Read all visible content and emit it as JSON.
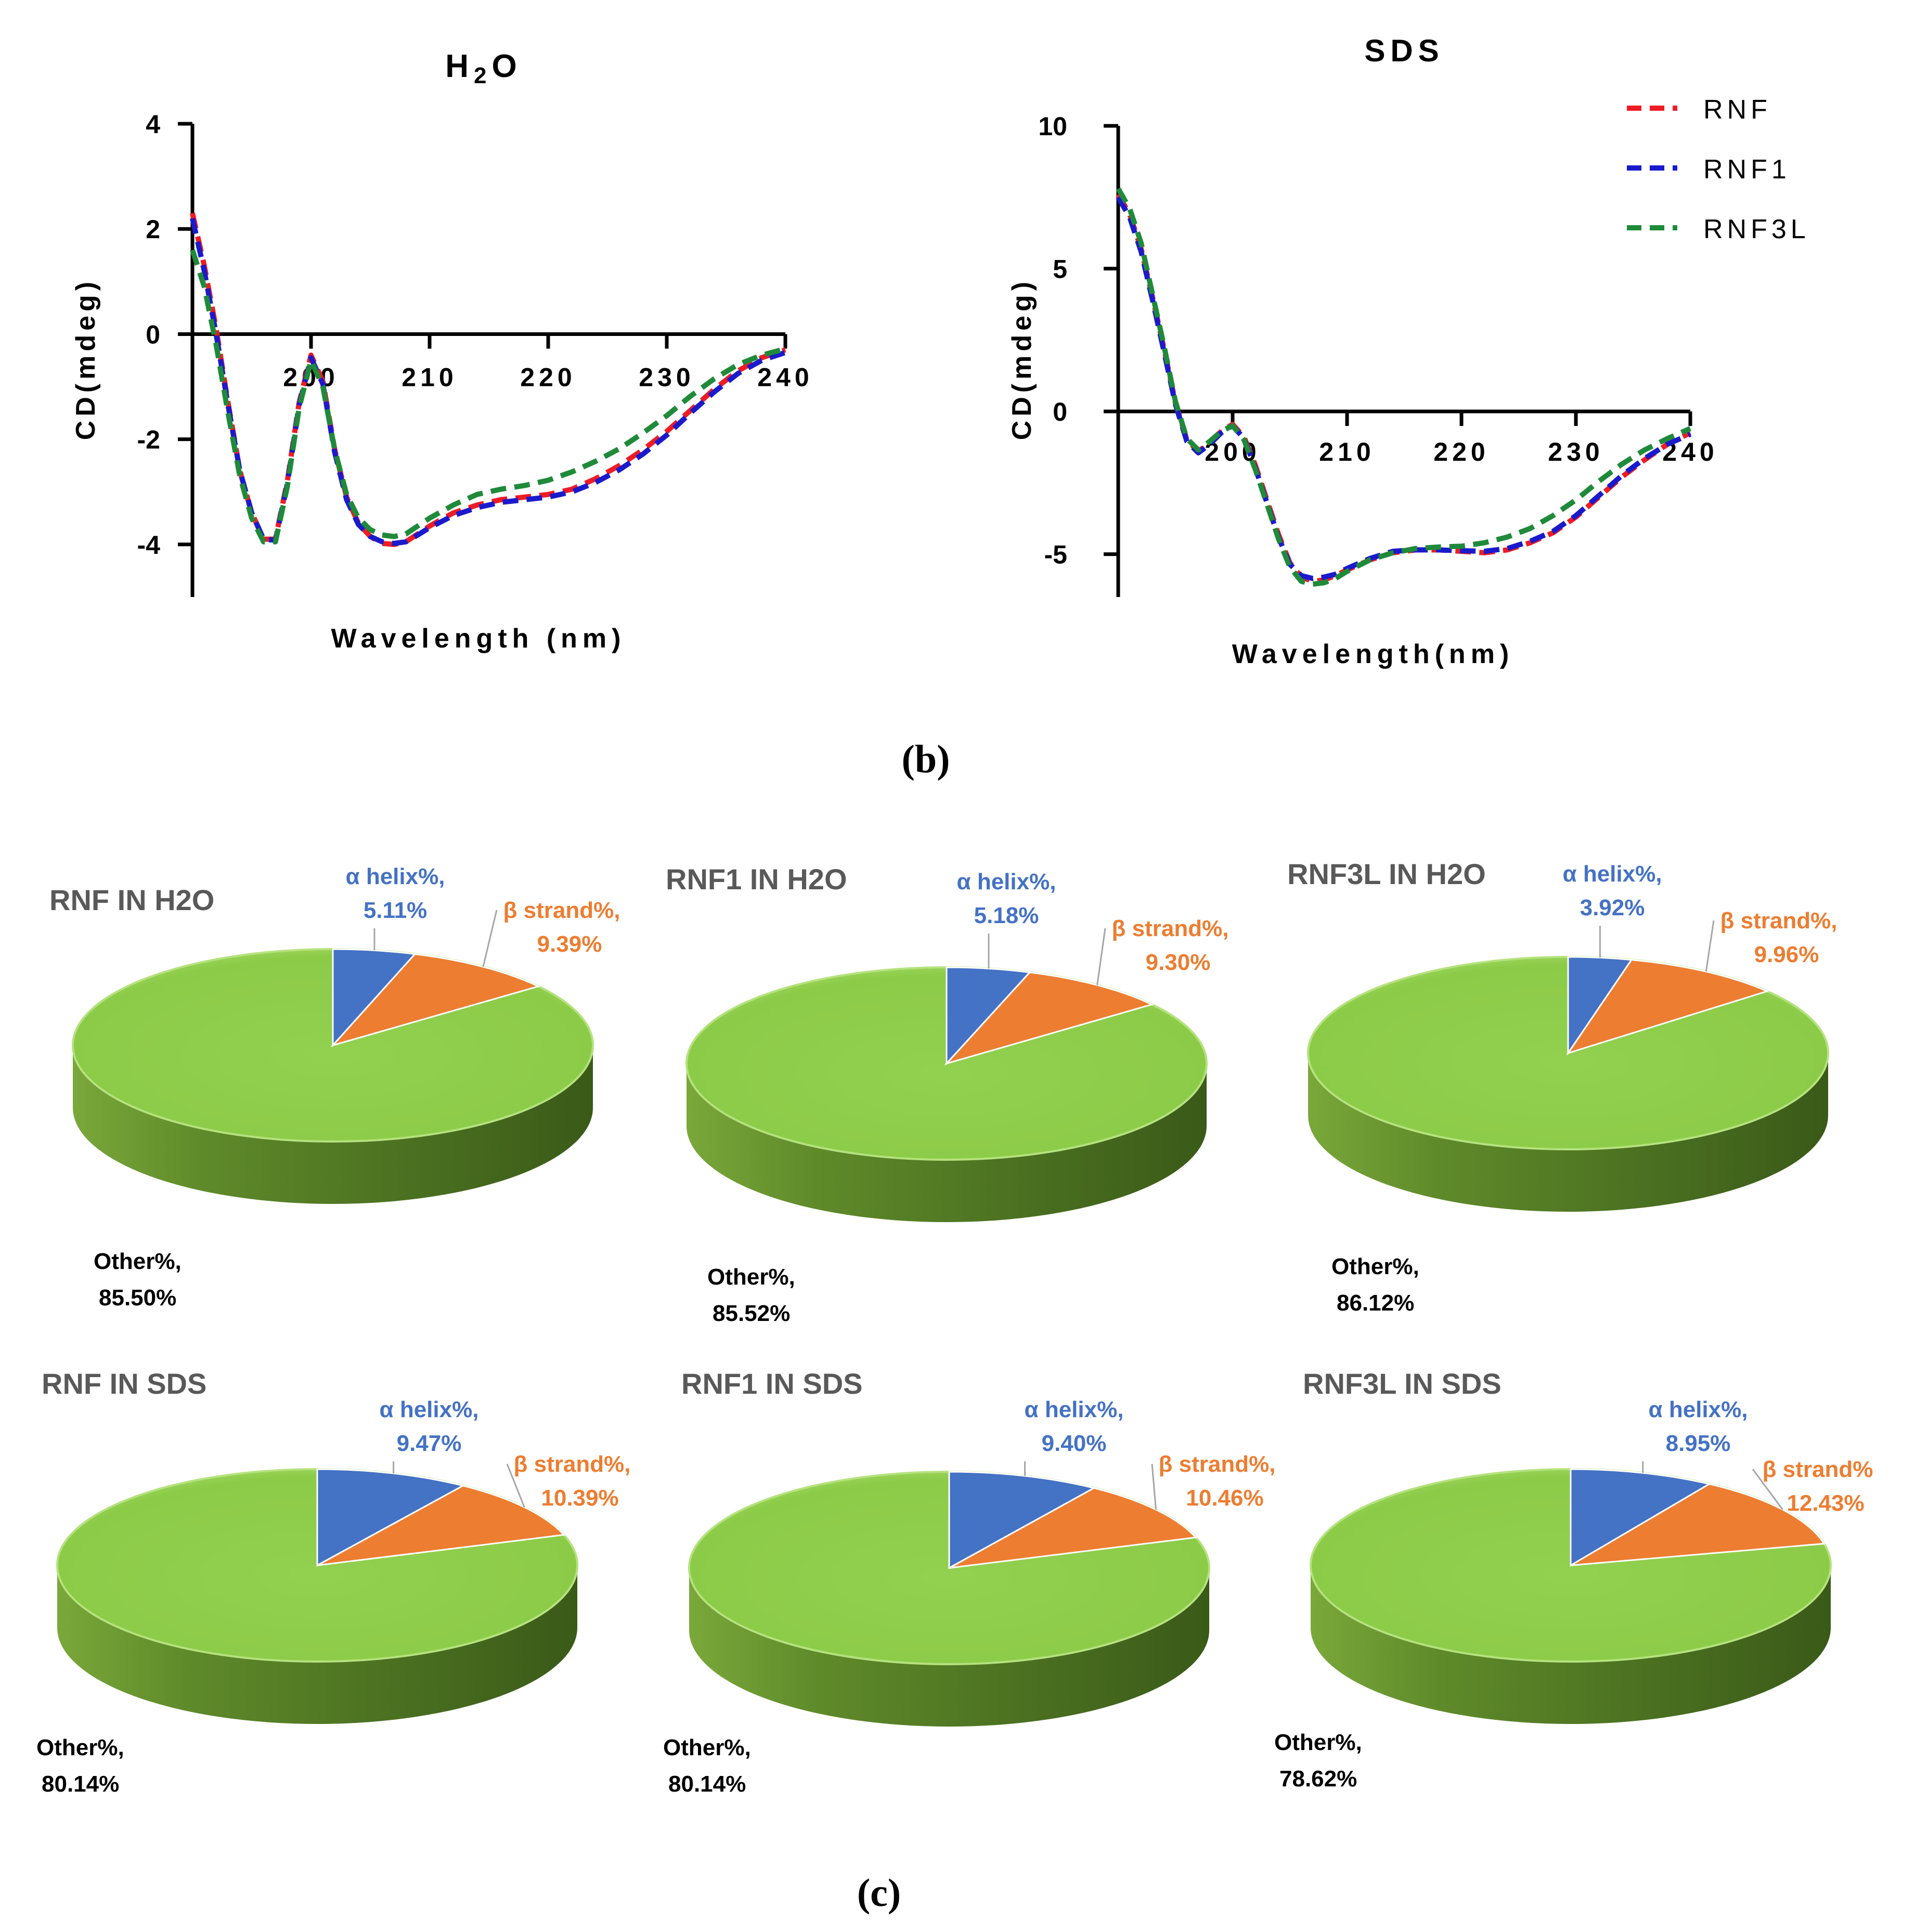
{
  "colors": {
    "rnf": "#ee1c25",
    "rnf1": "#1a1acc",
    "rnf3l": "#1f8a3a",
    "alpha": "#4472c4",
    "beta": "#ed7d31",
    "other": "#92d050",
    "alpha_label": "#4472c4",
    "beta_label": "#ed7d31",
    "title_gray": "#595959"
  },
  "captions": {
    "b": "(b)",
    "c": "(c)"
  },
  "chart_data": [
    {
      "type": "line",
      "title_main": "H",
      "title_sub": "2",
      "title_rest": "O",
      "xlabel": "Wavelength (nm)",
      "ylabel": "CD(mdeg)",
      "xlim": [
        190,
        240
      ],
      "ylim": [
        -5,
        4
      ],
      "xticks": [
        200,
        210,
        220,
        230,
        240
      ],
      "yticks": [
        -4,
        -2,
        0,
        2,
        4
      ],
      "grid": false,
      "series": [
        {
          "name": "RNF",
          "x": [
            190,
            191,
            192,
            193,
            194,
            195,
            196,
            197,
            198,
            199,
            200,
            201,
            202,
            203,
            204,
            205,
            206,
            207,
            208,
            209,
            210,
            212,
            214,
            216,
            218,
            220,
            222,
            224,
            226,
            228,
            230,
            232,
            234,
            236,
            238,
            240
          ],
          "values": [
            2.3,
            1.3,
            0.1,
            -1.3,
            -2.6,
            -3.4,
            -3.9,
            -3.9,
            -2.8,
            -1.3,
            -0.4,
            -0.9,
            -2.2,
            -3.1,
            -3.6,
            -3.85,
            -3.98,
            -4.0,
            -3.95,
            -3.8,
            -3.65,
            -3.4,
            -3.25,
            -3.15,
            -3.1,
            -3.05,
            -2.95,
            -2.75,
            -2.5,
            -2.2,
            -1.85,
            -1.45,
            -1.05,
            -0.7,
            -0.45,
            -0.3
          ]
        },
        {
          "name": "RNF1",
          "x": [
            190,
            191,
            192,
            193,
            194,
            195,
            196,
            197,
            198,
            199,
            200,
            201,
            202,
            203,
            204,
            205,
            206,
            207,
            208,
            209,
            210,
            212,
            214,
            216,
            218,
            220,
            222,
            224,
            226,
            228,
            230,
            232,
            234,
            236,
            238,
            240
          ],
          "values": [
            2.2,
            1.2,
            0.0,
            -1.35,
            -2.6,
            -3.4,
            -3.9,
            -3.92,
            -2.85,
            -1.35,
            -0.45,
            -0.95,
            -2.25,
            -3.15,
            -3.62,
            -3.85,
            -3.95,
            -3.98,
            -3.95,
            -3.82,
            -3.68,
            -3.45,
            -3.3,
            -3.2,
            -3.15,
            -3.1,
            -3.0,
            -2.82,
            -2.58,
            -2.28,
            -1.92,
            -1.5,
            -1.1,
            -0.75,
            -0.5,
            -0.35
          ]
        },
        {
          "name": "RNF3L",
          "x": [
            190,
            191,
            192,
            193,
            194,
            195,
            196,
            197,
            198,
            199,
            200,
            201,
            202,
            203,
            204,
            205,
            206,
            207,
            208,
            209,
            210,
            212,
            214,
            216,
            218,
            220,
            222,
            224,
            226,
            228,
            230,
            232,
            234,
            236,
            238,
            240
          ],
          "values": [
            1.6,
            0.9,
            -0.2,
            -1.5,
            -2.7,
            -3.5,
            -3.95,
            -3.95,
            -2.9,
            -1.4,
            -0.5,
            -1.0,
            -2.2,
            -3.05,
            -3.5,
            -3.72,
            -3.82,
            -3.85,
            -3.8,
            -3.65,
            -3.5,
            -3.25,
            -3.05,
            -2.95,
            -2.88,
            -2.78,
            -2.62,
            -2.42,
            -2.18,
            -1.88,
            -1.55,
            -1.18,
            -0.85,
            -0.58,
            -0.4,
            -0.28
          ]
        }
      ]
    },
    {
      "type": "line",
      "title": "SDS",
      "xlabel": "Wavelength(nm)",
      "ylabel": "CD(mdeg)",
      "xlim": [
        190,
        240
      ],
      "ylim": [
        -6.5,
        10
      ],
      "xticks": [
        200,
        210,
        220,
        230,
        240
      ],
      "yticks": [
        -5,
        0,
        5,
        10
      ],
      "grid": false,
      "legend": "top-right",
      "series": [
        {
          "name": "RNF",
          "x": [
            190,
            191,
            192,
            193,
            194,
            195,
            196,
            197,
            198,
            199,
            200,
            201,
            202,
            203,
            204,
            205,
            206,
            207,
            208,
            209,
            210,
            212,
            214,
            216,
            218,
            220,
            222,
            224,
            226,
            228,
            230,
            232,
            234,
            236,
            238,
            240
          ],
          "values": [
            7.6,
            6.9,
            5.7,
            4.0,
            2.2,
            0.3,
            -1.0,
            -1.4,
            -1.1,
            -0.7,
            -0.45,
            -0.9,
            -1.9,
            -3.1,
            -4.3,
            -5.3,
            -5.8,
            -5.95,
            -5.9,
            -5.75,
            -5.55,
            -5.2,
            -4.95,
            -4.85,
            -4.85,
            -4.9,
            -4.95,
            -4.85,
            -4.6,
            -4.25,
            -3.7,
            -3.0,
            -2.3,
            -1.7,
            -1.15,
            -0.75
          ]
        },
        {
          "name": "RNF1",
          "x": [
            190,
            191,
            192,
            193,
            194,
            195,
            196,
            197,
            198,
            199,
            200,
            201,
            202,
            203,
            204,
            205,
            206,
            207,
            208,
            209,
            210,
            212,
            214,
            216,
            218,
            220,
            222,
            224,
            226,
            228,
            230,
            232,
            234,
            236,
            238,
            240
          ],
          "values": [
            7.5,
            6.8,
            5.6,
            3.9,
            2.1,
            0.25,
            -1.05,
            -1.45,
            -1.15,
            -0.75,
            -0.5,
            -0.95,
            -2.0,
            -3.2,
            -4.4,
            -5.35,
            -5.75,
            -5.85,
            -5.8,
            -5.7,
            -5.5,
            -5.15,
            -4.9,
            -4.85,
            -4.85,
            -4.88,
            -4.9,
            -4.8,
            -4.55,
            -4.2,
            -3.65,
            -2.95,
            -2.25,
            -1.65,
            -1.15,
            -0.8
          ]
        },
        {
          "name": "RNF3L",
          "x": [
            190,
            191,
            192,
            193,
            194,
            195,
            196,
            197,
            198,
            199,
            200,
            201,
            202,
            203,
            204,
            205,
            206,
            207,
            208,
            209,
            210,
            212,
            214,
            216,
            218,
            220,
            222,
            224,
            226,
            228,
            230,
            232,
            234,
            236,
            238,
            240
          ],
          "values": [
            7.8,
            7.1,
            5.9,
            4.1,
            2.3,
            0.35,
            -0.95,
            -1.35,
            -1.05,
            -0.7,
            -0.5,
            -1.0,
            -2.05,
            -3.25,
            -4.45,
            -5.45,
            -5.95,
            -6.05,
            -6.0,
            -5.85,
            -5.6,
            -5.2,
            -4.95,
            -4.8,
            -4.75,
            -4.72,
            -4.6,
            -4.4,
            -4.1,
            -3.65,
            -3.1,
            -2.45,
            -1.85,
            -1.35,
            -0.95,
            -0.6
          ]
        }
      ]
    },
    {
      "type": "pie",
      "title": "RNF IN H2O",
      "slices": [
        {
          "label": "α helix%,",
          "value": 5.11,
          "value_text": "5.11%"
        },
        {
          "label": "β strand%,",
          "value": 9.39,
          "value_text": "9.39%"
        },
        {
          "label": "Other%,",
          "value": 85.5,
          "value_text": "85.50%"
        }
      ]
    },
    {
      "type": "pie",
      "title": "RNF1 IN H2O",
      "slices": [
        {
          "label": "α helix%,",
          "value": 5.18,
          "value_text": "5.18%"
        },
        {
          "label": "β strand%,",
          "value": 9.3,
          "value_text": "9.30%"
        },
        {
          "label": "Other%,",
          "value": 85.52,
          "value_text": "85.52%"
        }
      ]
    },
    {
      "type": "pie",
      "title": "RNF3L IN H2O",
      "slices": [
        {
          "label": "α helix%,",
          "value": 3.92,
          "value_text": "3.92%"
        },
        {
          "label": "β strand%,",
          "value": 9.96,
          "value_text": "9.96%"
        },
        {
          "label": "Other%,",
          "value": 86.12,
          "value_text": "86.12%"
        }
      ]
    },
    {
      "type": "pie",
      "title": "RNF IN SDS",
      "slices": [
        {
          "label": "α helix%,",
          "value": 9.47,
          "value_text": "9.47%"
        },
        {
          "label": "β strand%,",
          "value": 10.39,
          "value_text": "10.39%"
        },
        {
          "label": "Other%,",
          "value": 80.14,
          "value_text": "80.14%"
        }
      ]
    },
    {
      "type": "pie",
      "title": "RNF1 IN SDS",
      "slices": [
        {
          "label": "α helix%,",
          "value": 9.4,
          "value_text": "9.40%"
        },
        {
          "label": "β strand%,",
          "value": 10.46,
          "value_text": "10.46%"
        },
        {
          "label": "Other%,",
          "value": 80.14,
          "value_text": "80.14%"
        }
      ]
    },
    {
      "type": "pie",
      "title": "RNF3L IN SDS",
      "slices": [
        {
          "label": "α helix%,",
          "value": 8.95,
          "value_text": "8.95%"
        },
        {
          "label": "β strand%",
          "value": 12.43,
          "value_text": "12.43%"
        },
        {
          "label": "Other%,",
          "value": 78.62,
          "value_text": "78.62%"
        }
      ]
    }
  ]
}
